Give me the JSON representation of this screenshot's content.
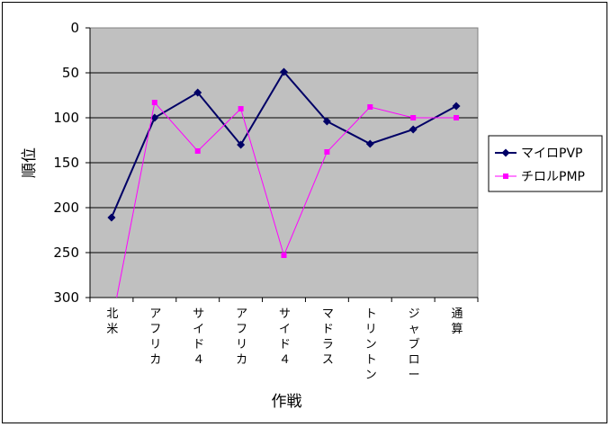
{
  "chart_data": {
    "type": "line",
    "title": "",
    "xlabel": "作戦",
    "ylabel": "順位",
    "yaxis": {
      "min": 0,
      "max": 300,
      "step": 50,
      "reversed": true
    },
    "grid": true,
    "legend_position": "right",
    "categories": [
      "北米",
      "アフリカ",
      "サイド４",
      "アフリカ",
      "サイド４",
      "マドラス",
      "トリントン",
      "ジャブロー",
      "通算"
    ],
    "series": [
      {
        "name": "マイロPVP",
        "color": "#000066",
        "marker": "diamond",
        "values": [
          211,
          100,
          72,
          130,
          49,
          104,
          129,
          113,
          87
        ]
      },
      {
        "name": "チロルPMP",
        "color": "#ff00ff",
        "marker": "square",
        "values": [
          null,
          83,
          137,
          90,
          253,
          138,
          88,
          100,
          100
        ]
      }
    ]
  },
  "colors": {
    "plot_bg": "#c0c0c0",
    "grid": "#000000"
  }
}
